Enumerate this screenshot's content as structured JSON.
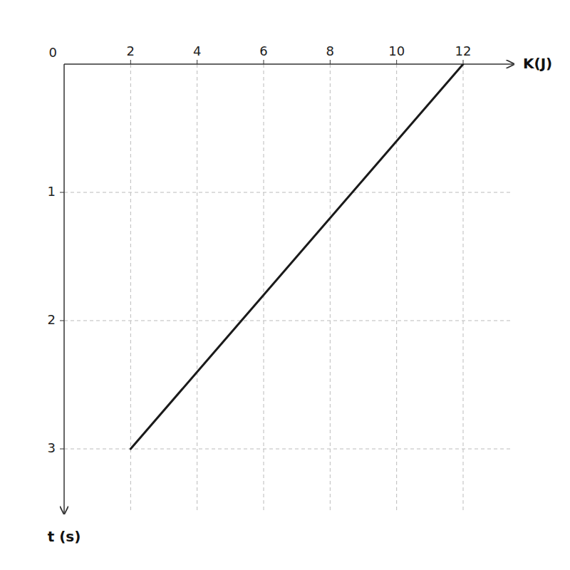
{
  "chart_data": {
    "type": "line",
    "x_label": "K(J)",
    "y_label": "t (s)",
    "x": [
      12,
      2
    ],
    "values": [
      0,
      3
    ],
    "color": "#1a1a1a",
    "xlim": [
      0,
      13.5
    ],
    "xticks": [
      2,
      4,
      6,
      8,
      10,
      12
    ],
    "ylim": [
      3.5,
      0
    ],
    "yticks": [
      1,
      2,
      3
    ],
    "grid": true,
    "annotations": [
      {
        "text": "0",
        "x": 0,
        "y": 0
      }
    ]
  }
}
